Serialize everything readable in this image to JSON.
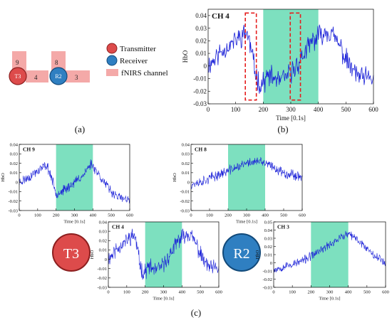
{
  "panel_labels": {
    "a": "(a)",
    "b": "(b)",
    "c": "(c)"
  },
  "legend": {
    "transmitter": "Transmitter",
    "receiver": "Receiver",
    "channel": "fNIRS channel"
  },
  "layout_diagram": {
    "nodes": [
      {
        "label": "T3",
        "role": "transmitter"
      },
      {
        "label": "R2",
        "role": "receiver"
      }
    ],
    "channels": [
      "9",
      "4",
      "8",
      "3"
    ]
  },
  "big_nodes": {
    "t3": "T3",
    "r2": "R2"
  },
  "colors": {
    "transmitter": "#dd4b4b",
    "receiver": "#2f7fc1",
    "channel": "#f4a9a8",
    "stimulus_band": "#7de0bf",
    "signal": "#1c22d8",
    "marker_box": "#e51e1e"
  },
  "chart_data": [
    {
      "id": "ch4_main",
      "type": "line",
      "title": "CH 4",
      "xlabel": "Time [0.1s]",
      "ylabel": "HbO",
      "xlim": [
        0,
        600
      ],
      "ylim": [
        -0.03,
        0.045
      ],
      "xticks": [
        0,
        100,
        200,
        300,
        400,
        500,
        600
      ],
      "yticks": [
        -0.03,
        -0.02,
        -0.01,
        0,
        0.01,
        0.02,
        0.03,
        0.04
      ],
      "ytick_labels": [
        "-0.03",
        "-0.02",
        "-0.01",
        "0",
        "0.01",
        "0.02",
        "0.03",
        "0.04"
      ],
      "shaded": [
        200,
        400
      ],
      "highlight_boxes": [
        {
          "x": [
            135,
            175
          ],
          "y": [
            -0.027,
            0.042
          ]
        },
        {
          "x": [
            298,
            335
          ],
          "y": [
            -0.027,
            0.042
          ]
        }
      ],
      "noise": 0.0065,
      "seed": 11,
      "series": [
        {
          "x": [
            0,
            40,
            80,
            110,
            140,
            160,
            170,
            190,
            220,
            260,
            290,
            320,
            350,
            380,
            410,
            430,
            450,
            480,
            500,
            530,
            560,
            600
          ],
          "y": [
            0.0,
            0.01,
            0.017,
            0.022,
            0.027,
            0.01,
            -0.005,
            -0.015,
            -0.008,
            -0.012,
            -0.008,
            0.0,
            0.01,
            0.02,
            0.025,
            0.028,
            0.025,
            0.015,
            0.005,
            -0.005,
            -0.01,
            -0.01
          ]
        }
      ]
    },
    {
      "id": "ch9",
      "type": "line",
      "title": "CH 9",
      "xlabel": "Time [0.1s]",
      "ylabel": "HbO",
      "xlim": [
        0,
        600
      ],
      "ylim": [
        -0.03,
        0.04
      ],
      "xticks": [
        0,
        100,
        200,
        300,
        400,
        500,
        600
      ],
      "yticks": [
        -0.03,
        -0.02,
        -0.01,
        0,
        0.01,
        0.02,
        0.03,
        0.04
      ],
      "ytick_labels": [
        "-0.03",
        "-0.02",
        "-0.01",
        "0",
        "0.01",
        "0.02",
        "0.03",
        "0.04"
      ],
      "shaded": [
        200,
        400
      ],
      "noise": 0.004,
      "seed": 23,
      "series": [
        {
          "x": [
            0,
            50,
            100,
            150,
            175,
            200,
            250,
            300,
            350,
            390,
            420,
            460,
            500,
            550,
            600
          ],
          "y": [
            0.0,
            0.005,
            0.012,
            0.018,
            0.005,
            -0.012,
            -0.008,
            0.0,
            0.008,
            0.02,
            0.012,
            0.0,
            -0.01,
            -0.017,
            -0.02
          ]
        }
      ]
    },
    {
      "id": "ch8",
      "type": "line",
      "title": "CH 8",
      "xlabel": "Time [0.1s]",
      "ylabel": "HbO",
      "xlim": [
        0,
        600
      ],
      "ylim": [
        -0.03,
        0.04
      ],
      "xticks": [
        0,
        100,
        200,
        300,
        400,
        500,
        600
      ],
      "yticks": [
        -0.03,
        -0.02,
        -0.01,
        0,
        0.01,
        0.02,
        0.03,
        0.04
      ],
      "ytick_labels": [
        "-0.03",
        "-0.02",
        "-0.01",
        "0",
        "0.01",
        "0.02",
        "0.03",
        "0.04"
      ],
      "shaded": [
        200,
        400
      ],
      "noise": 0.004,
      "seed": 37,
      "series": [
        {
          "x": [
            0,
            50,
            100,
            150,
            200,
            250,
            300,
            350,
            400,
            450,
            500,
            550,
            600
          ],
          "y": [
            -0.002,
            0.0,
            0.004,
            0.008,
            0.012,
            0.016,
            0.02,
            0.022,
            0.02,
            0.015,
            0.01,
            0.008,
            0.006
          ]
        }
      ]
    },
    {
      "id": "ch4_small",
      "type": "line",
      "title": "CH 4",
      "xlabel": "Time [0.1s]",
      "ylabel": "HbO",
      "xlim": [
        0,
        600
      ],
      "ylim": [
        -0.03,
        0.04
      ],
      "xticks": [
        0,
        100,
        200,
        300,
        400,
        500,
        600
      ],
      "yticks": [
        -0.03,
        -0.02,
        -0.01,
        0,
        0.01,
        0.02,
        0.03,
        0.04
      ],
      "ytick_labels": [
        "-0.03",
        "-0.02",
        "-0.01",
        "0",
        "0.01",
        "0.02",
        "0.03",
        "0.04"
      ],
      "shaded": [
        200,
        400
      ],
      "noise": 0.0065,
      "seed": 11,
      "series": [
        {
          "x": [
            0,
            40,
            80,
            110,
            140,
            160,
            170,
            190,
            220,
            260,
            290,
            320,
            350,
            380,
            410,
            430,
            450,
            480,
            500,
            530,
            560,
            600
          ],
          "y": [
            0.0,
            0.01,
            0.017,
            0.022,
            0.027,
            0.01,
            -0.005,
            -0.015,
            -0.008,
            -0.012,
            -0.008,
            0.0,
            0.01,
            0.02,
            0.025,
            0.028,
            0.025,
            0.015,
            0.005,
            -0.005,
            -0.01,
            -0.01
          ]
        }
      ]
    },
    {
      "id": "ch3",
      "type": "line",
      "title": "CH 3",
      "xlabel": "Time [0.1s]",
      "ylabel": "HbO",
      "xlim": [
        0,
        600
      ],
      "ylim": [
        -0.03,
        0.05
      ],
      "xticks": [
        0,
        100,
        200,
        300,
        400,
        500,
        600
      ],
      "yticks": [
        -0.03,
        -0.02,
        -0.01,
        0,
        0.01,
        0.02,
        0.03,
        0.04,
        0.05
      ],
      "ytick_labels": [
        "-0.03",
        "-0.02",
        "-0.01",
        "0",
        "0.01",
        "0.02",
        "0.03",
        "0.04",
        "0.05"
      ],
      "shaded": [
        200,
        400
      ],
      "noise": 0.004,
      "seed": 53,
      "series": [
        {
          "x": [
            0,
            50,
            100,
            150,
            200,
            250,
            300,
            350,
            400,
            450,
            500,
            550,
            600
          ],
          "y": [
            -0.008,
            -0.005,
            -0.002,
            0.002,
            0.008,
            0.015,
            0.022,
            0.03,
            0.035,
            0.028,
            0.018,
            0.008,
            0.0
          ]
        }
      ]
    }
  ]
}
